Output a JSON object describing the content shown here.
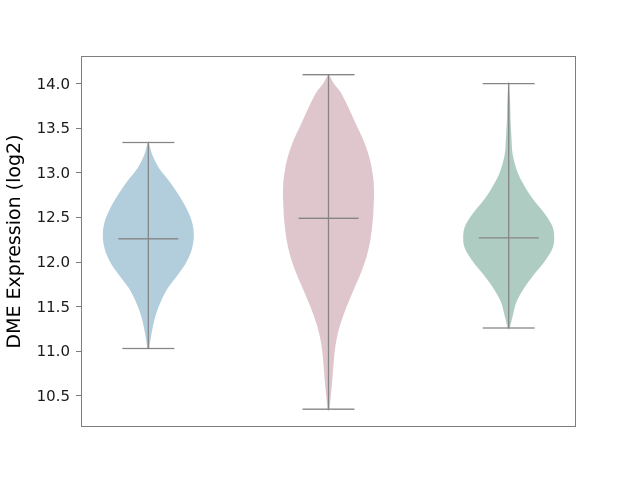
{
  "chart_data": {
    "type": "violin",
    "title": "",
    "xlabel": "",
    "ylabel": "DME Expression (log2)",
    "ylim": [
      10.15,
      14.31
    ],
    "y_ticks": [
      14.0,
      13.5,
      13.0,
      12.5,
      12.0,
      11.5,
      11.0,
      10.5
    ],
    "y_tick_labels": [
      "14.0",
      "13.5",
      "13.0",
      "12.5",
      "12.0",
      "11.5",
      "11.0",
      "10.5"
    ],
    "x_tick_labels": [],
    "grid": false,
    "legend": null,
    "frame_color": "#7d7d7d",
    "inner_line_color": "#858585",
    "series": [
      {
        "name": "violin-1",
        "fill_color": "#b2cddb",
        "whisker_min": 11.03,
        "whisker_max": 13.34,
        "median": 12.26,
        "profile": [
          [
            13.34,
            0.01
          ],
          [
            13.2,
            0.09
          ],
          [
            13.05,
            0.24
          ],
          [
            12.9,
            0.47
          ],
          [
            12.75,
            0.67
          ],
          [
            12.6,
            0.84
          ],
          [
            12.45,
            0.96
          ],
          [
            12.3,
            1.0
          ],
          [
            12.15,
            0.96
          ],
          [
            12.0,
            0.84
          ],
          [
            11.85,
            0.64
          ],
          [
            11.7,
            0.42
          ],
          [
            11.55,
            0.27
          ],
          [
            11.4,
            0.16
          ],
          [
            11.25,
            0.09
          ],
          [
            11.1,
            0.04
          ],
          [
            11.03,
            0.02
          ]
        ]
      },
      {
        "name": "violin-2",
        "fill_color": "#dfc5cc",
        "whisker_min": 10.35,
        "whisker_max": 14.1,
        "median": 12.49,
        "profile": [
          [
            14.1,
            0.01
          ],
          [
            14.0,
            0.12
          ],
          [
            13.9,
            0.27
          ],
          [
            13.75,
            0.42
          ],
          [
            13.55,
            0.6
          ],
          [
            13.35,
            0.78
          ],
          [
            13.15,
            0.91
          ],
          [
            12.95,
            0.98
          ],
          [
            12.8,
            1.0
          ],
          [
            12.6,
            0.99
          ],
          [
            12.45,
            0.97
          ],
          [
            12.25,
            0.92
          ],
          [
            12.05,
            0.83
          ],
          [
            11.85,
            0.69
          ],
          [
            11.65,
            0.52
          ],
          [
            11.45,
            0.36
          ],
          [
            11.25,
            0.23
          ],
          [
            11.05,
            0.15
          ],
          [
            10.85,
            0.11
          ],
          [
            10.65,
            0.08
          ],
          [
            10.5,
            0.05
          ],
          [
            10.35,
            0.02
          ]
        ]
      },
      {
        "name": "violin-3",
        "fill_color": "#aeccc1",
        "whisker_min": 11.26,
        "whisker_max": 14.0,
        "median": 12.27,
        "profile": [
          [
            14.0,
            0.01
          ],
          [
            13.8,
            0.03
          ],
          [
            13.6,
            0.04
          ],
          [
            13.4,
            0.06
          ],
          [
            13.2,
            0.09
          ],
          [
            13.0,
            0.2
          ],
          [
            12.85,
            0.35
          ],
          [
            12.7,
            0.54
          ],
          [
            12.55,
            0.78
          ],
          [
            12.4,
            0.96
          ],
          [
            12.27,
            1.0
          ],
          [
            12.15,
            0.96
          ],
          [
            12.0,
            0.78
          ],
          [
            11.85,
            0.54
          ],
          [
            11.7,
            0.33
          ],
          [
            11.55,
            0.17
          ],
          [
            11.4,
            0.09
          ],
          [
            11.26,
            0.02
          ]
        ]
      }
    ]
  }
}
